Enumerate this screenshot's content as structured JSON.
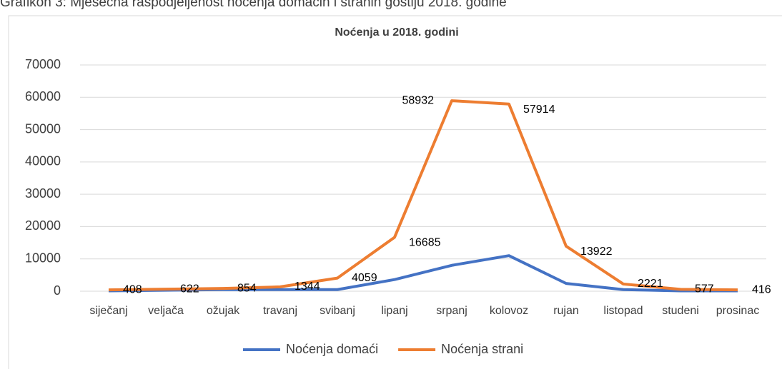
{
  "caption": "Grafikon 3: Mjesečna raspodjeljenost noćenja domaćih i stranih gostiju 2018. godine",
  "chart_data": {
    "type": "line",
    "title": "Noćenja u 2018. godini",
    "categories": [
      "siječanj",
      "veljača",
      "ožujak",
      "travanj",
      "svibanj",
      "lipanj",
      "srpanj",
      "kolovoz",
      "rujan",
      "listopad",
      "studeni",
      "prosinac"
    ],
    "series": [
      {
        "name": "Noćenja domaći",
        "color": "#4472c4",
        "values": [
          100,
          300,
          500,
          500,
          500,
          3600,
          8000,
          11000,
          2400,
          500,
          100,
          100
        ]
      },
      {
        "name": "Noćenja strani",
        "color": "#ed7d31",
        "values": [
          408,
          622,
          854,
          1344,
          4059,
          16685,
          58932,
          57914,
          13922,
          2221,
          577,
          416
        ],
        "data_labels": true
      }
    ],
    "ylim": [
      0,
      70000
    ],
    "yticks": [
      0,
      10000,
      20000,
      30000,
      40000,
      50000,
      60000,
      70000
    ],
    "grid": true,
    "legend": "bottom"
  }
}
